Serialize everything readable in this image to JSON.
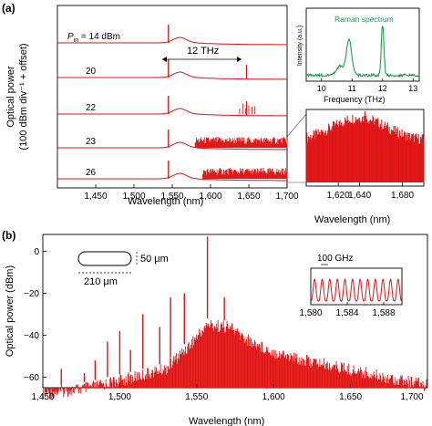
{
  "panel_labels": {
    "a": "(a)",
    "b": "(b)"
  },
  "chart_data": [
    {
      "type": "line",
      "panel": "(a) main",
      "ylabel_line1": "Optical power",
      "ylabel_line2": "(100 dBm div⁻¹ + offset)",
      "xlabel": "Wavelength (nm)",
      "xlim": [
        1400,
        1700
      ],
      "xticks": [
        "1,450",
        "1,500",
        "1,550",
        "1,600",
        "1,650",
        "1,700"
      ],
      "series": [
        {
          "name": "Pin = 14 dBm",
          "label_main": "P",
          "label_sub": "in",
          "label_rest": " = 14 dBm",
          "pump_nm": 1545,
          "raman_nm": null,
          "comb": null
        },
        {
          "name": "20",
          "label_rest": "20",
          "pump_nm": 1545,
          "raman_nm": 1647,
          "comb": null
        },
        {
          "name": "22",
          "label_rest": "22",
          "pump_nm": 1545,
          "raman_nm": 1647,
          "comb": [
            1638,
            1658
          ]
        },
        {
          "name": "23",
          "label_rest": "23",
          "pump_nm": 1545,
          "raman_nm": null,
          "comb": [
            1580,
            1700
          ]
        },
        {
          "name": "26",
          "label_rest": "26",
          "pump_nm": 1545,
          "raman_nm": null,
          "comb": [
            1590,
            1700
          ]
        }
      ],
      "annotation": {
        "text": "12 THz",
        "from_nm": 1545,
        "to_nm": 1647
      }
    },
    {
      "type": "line",
      "panel": "(a) inset",
      "title": "Raman spectrum",
      "xlabel": "Frequency (THz)",
      "ylabel": "Intensity (a.u.)",
      "xlim": [
        9.5,
        13.2
      ],
      "xticks": [
        10,
        11,
        12,
        13
      ],
      "peaks_thz": [
        10.9,
        12.0
      ],
      "color": "#1aa04a"
    },
    {
      "type": "line",
      "panel": "(a) zoom",
      "xlabel": "Wavelength (nm)",
      "xlim": [
        1590,
        1700
      ],
      "xticks": [
        1620,
        1640,
        1680
      ],
      "tick_labels": [
        "1,620",
        "1,640",
        "1,680"
      ],
      "pump_spike_nm": 1645
    },
    {
      "type": "line",
      "panel": "(b)",
      "xlabel": "Wavelength (nm)",
      "ylabel": "Optical power (dBm)",
      "xlim": [
        1450,
        1700
      ],
      "ylim": [
        -65,
        8
      ],
      "xticks": [
        "1,450",
        "1,500",
        "1,550",
        "1,600",
        "1,650",
        "1,700"
      ],
      "yticks": [
        "0",
        "−20",
        "−40",
        "−60"
      ],
      "pump_nm": 1557,
      "pump_dbm": 7,
      "comb_lines": [
        {
          "x": 1462,
          "y": -56
        },
        {
          "x": 1477,
          "y": -58
        },
        {
          "x": 1484,
          "y": -52
        },
        {
          "x": 1492,
          "y": -43
        },
        {
          "x": 1500,
          "y": -38
        },
        {
          "x": 1507,
          "y": -47
        },
        {
          "x": 1515,
          "y": -30
        },
        {
          "x": 1526,
          "y": -36
        },
        {
          "x": 1533,
          "y": -22
        },
        {
          "x": 1542,
          "y": -20
        },
        {
          "x": 1557,
          "y": 7
        },
        {
          "x": 1568,
          "y": -22
        },
        {
          "x": 1573,
          "y": -40
        }
      ],
      "envelope": [
        [
          1450,
          -65
        ],
        [
          1480,
          -62
        ],
        [
          1510,
          -57
        ],
        [
          1530,
          -53
        ],
        [
          1545,
          -42
        ],
        [
          1557,
          -32
        ],
        [
          1570,
          -33
        ],
        [
          1585,
          -40
        ],
        [
          1600,
          -45
        ],
        [
          1620,
          -49
        ],
        [
          1640,
          -52
        ],
        [
          1660,
          -55
        ],
        [
          1680,
          -58
        ],
        [
          1700,
          -61
        ]
      ],
      "resonator": {
        "length": "210 μm",
        "width": "50 μm"
      },
      "inset": {
        "fsr": "100 GHz",
        "xlim": [
          1580,
          1590
        ],
        "xticks": [
          "1,580",
          "1,584",
          "1,588"
        ]
      }
    }
  ]
}
